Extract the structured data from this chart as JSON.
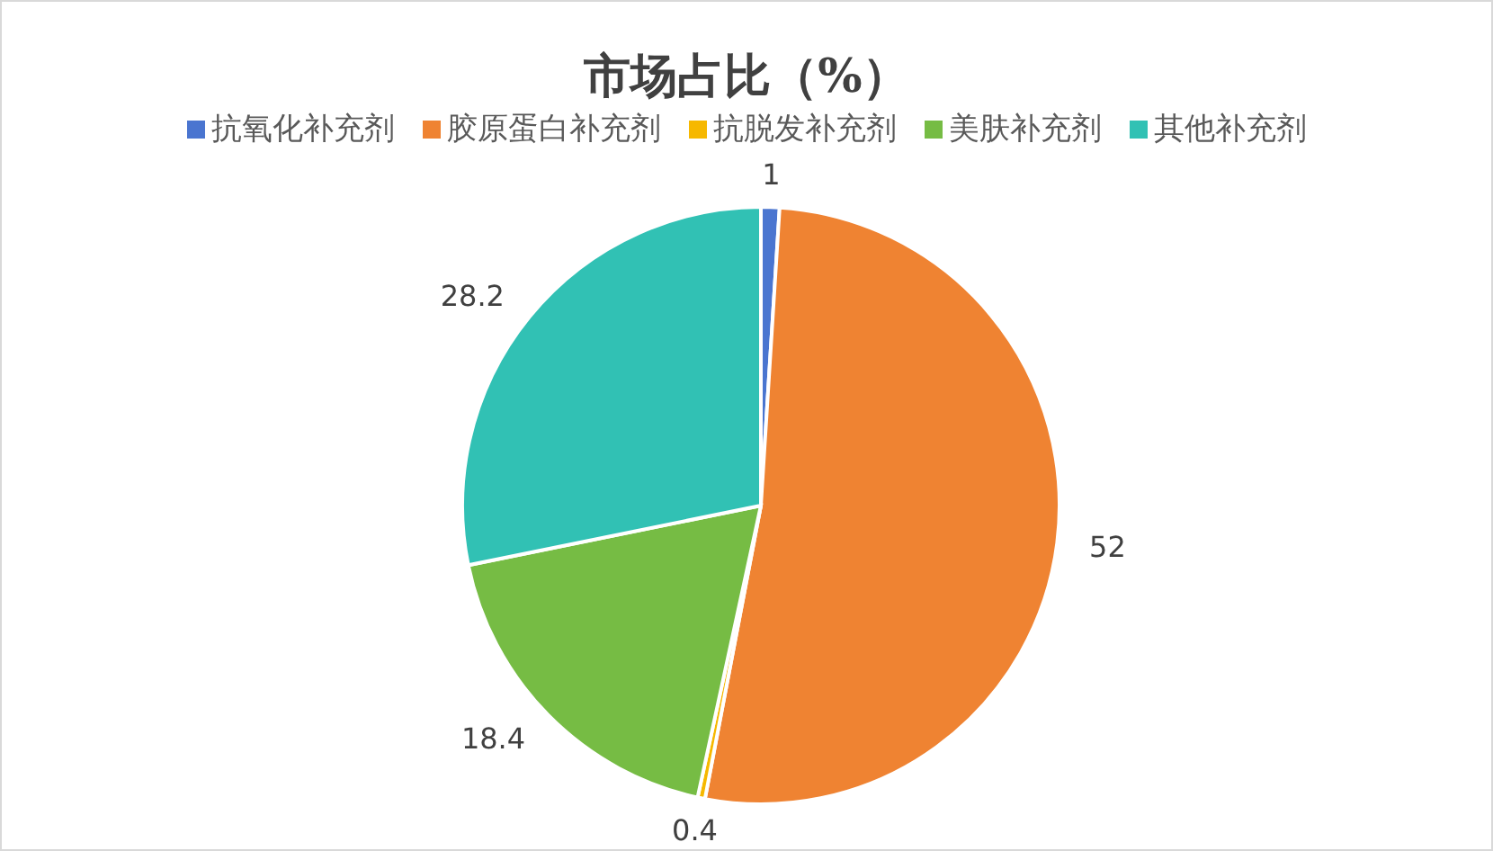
{
  "chart_data": {
    "type": "pie",
    "title": "市场占比（%）",
    "categories": [
      "抗氧化补充剂",
      "胶原蛋白补充剂",
      "抗脱发补充剂",
      "美肤补充剂",
      "其他补充剂"
    ],
    "values": [
      1,
      52,
      0.4,
      18.4,
      28.2
    ],
    "colors": [
      "#4a75d0",
      "#ef8332",
      "#f6b800",
      "#76bc44",
      "#31c1b4"
    ],
    "legend": "top",
    "data_labels": true
  }
}
